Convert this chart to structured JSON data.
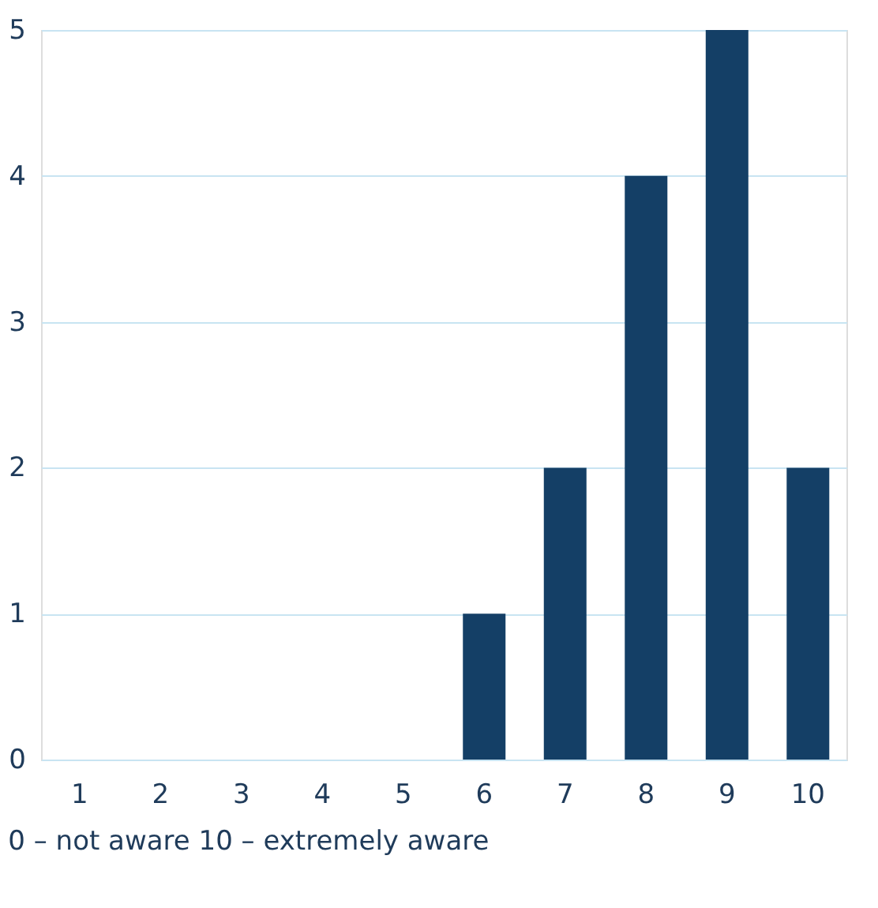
{
  "chart_data": {
    "type": "bar",
    "categories": [
      "1",
      "2",
      "3",
      "4",
      "5",
      "6",
      "7",
      "8",
      "9",
      "10"
    ],
    "values": [
      0,
      0,
      0,
      0,
      0,
      1,
      2,
      4,
      5,
      2
    ],
    "color": "#143f66",
    "ylim": [
      0,
      5
    ],
    "yticks": [
      0,
      1,
      2,
      3,
      4,
      5
    ],
    "grid": "y",
    "annotations": [
      "0 – not aware 10 – extremely aware"
    ]
  }
}
